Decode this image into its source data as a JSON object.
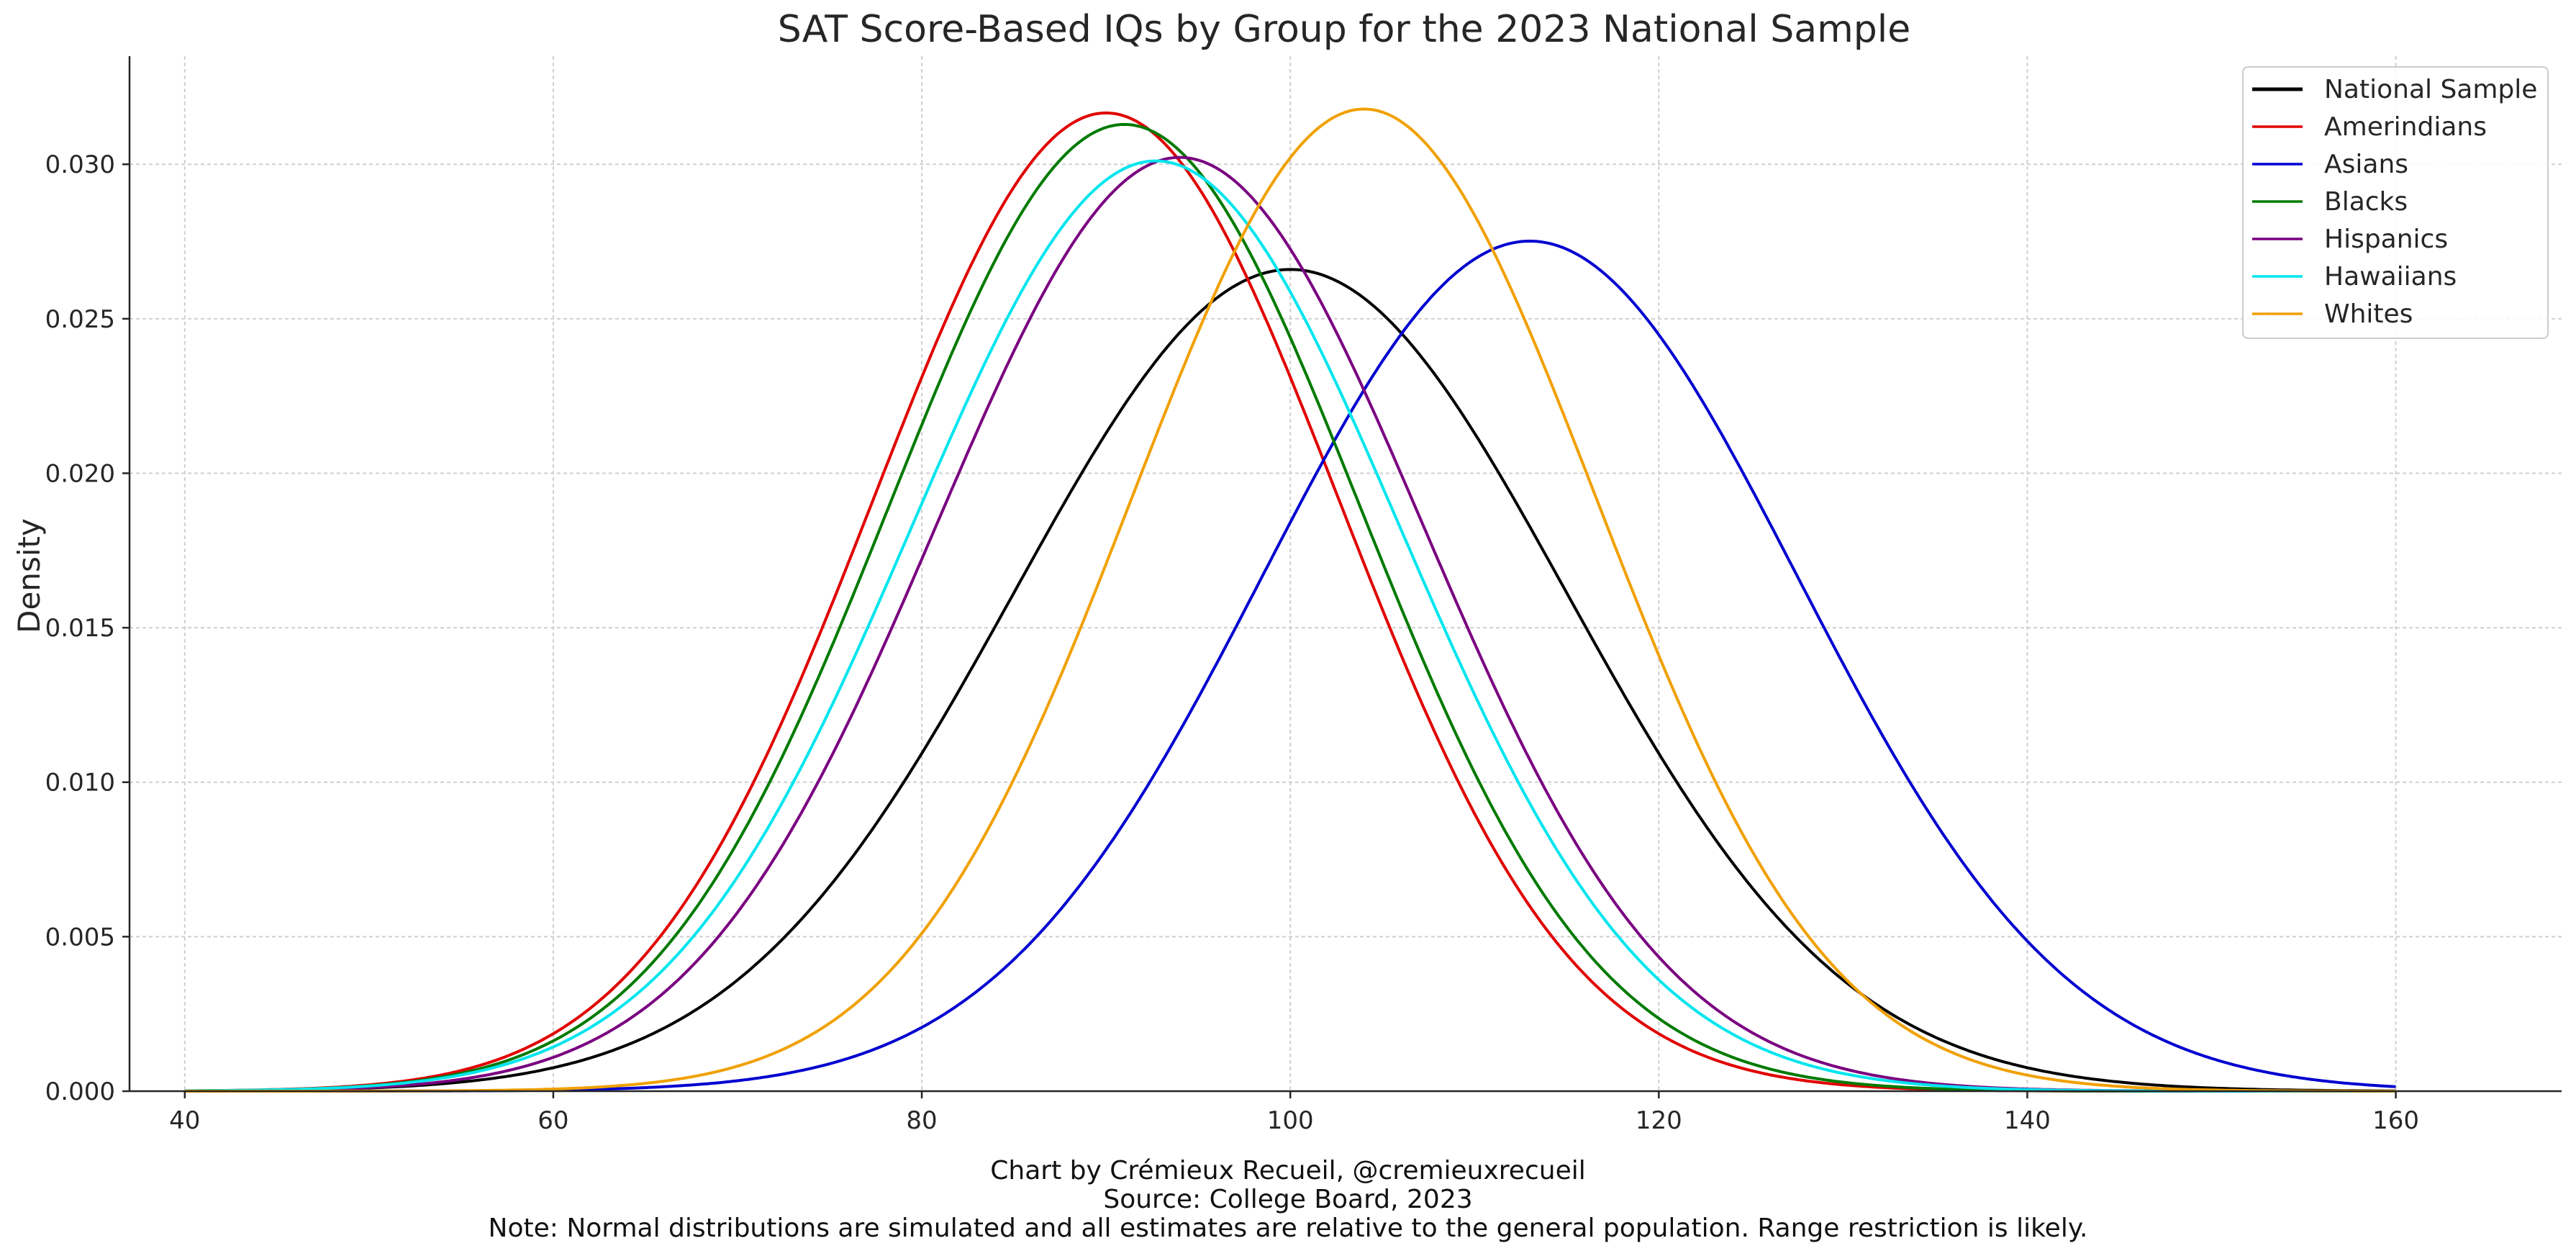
{
  "chart_data": {
    "type": "line",
    "title": "SAT Score-Based IQs by Group for the 2023 National Sample",
    "xlabel": "",
    "ylabel": "Density",
    "xlim": [
      37,
      169
    ],
    "ylim": [
      0,
      0.0335
    ],
    "xticks": [
      40,
      60,
      80,
      100,
      120,
      140,
      160
    ],
    "yticks": [
      0.0,
      0.005,
      0.01,
      0.015,
      0.02,
      0.025,
      0.03
    ],
    "ytick_labels": [
      "0.000",
      "0.005",
      "0.010",
      "0.015",
      "0.020",
      "0.025",
      "0.030"
    ],
    "x_range": [
      40,
      160
    ],
    "grid": true,
    "legend_position": "top-right",
    "series": [
      {
        "name": "National Sample",
        "distribution": "normal",
        "mean": 100.0,
        "sd": 15.0,
        "color": "#000000"
      },
      {
        "name": "Amerindians",
        "distribution": "normal",
        "mean": 90.0,
        "sd": 12.6,
        "color": "#e00000"
      },
      {
        "name": "Asians",
        "distribution": "normal",
        "mean": 113.0,
        "sd": 14.5,
        "color": "#0000d0"
      },
      {
        "name": "Blacks",
        "distribution": "normal",
        "mean": 91.0,
        "sd": 12.75,
        "color": "#007a00"
      },
      {
        "name": "Hispanics",
        "distribution": "normal",
        "mean": 94.0,
        "sd": 13.2,
        "color": "#7a0080"
      },
      {
        "name": "Hawaiians",
        "distribution": "normal",
        "mean": 92.7,
        "sd": 13.25,
        "color": "#00e5ee"
      },
      {
        "name": "Whites",
        "distribution": "normal",
        "mean": 104.0,
        "sd": 12.55,
        "color": "#f0a000"
      }
    ]
  },
  "footer": {
    "credit": "Chart by Crémieux Recueil, @cremieuxrecueil",
    "source": "Source: College Board, 2023",
    "note": "Note: Normal distributions are simulated and all estimates are relative to the general population. Range restriction is likely."
  }
}
